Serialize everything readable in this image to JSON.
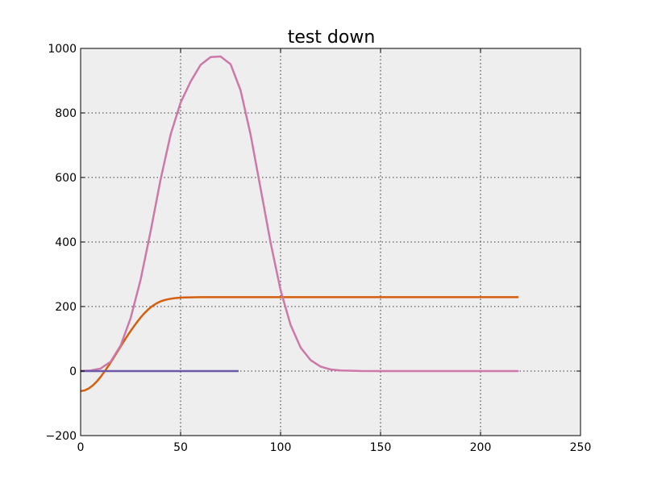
{
  "chart_data": {
    "type": "line",
    "title": "test down",
    "xlabel": "",
    "ylabel": "",
    "xlim": [
      0,
      250
    ],
    "ylim": [
      -200,
      1000
    ],
    "xticks": [
      0,
      50,
      100,
      150,
      200,
      250
    ],
    "yticks": [
      -200,
      0,
      200,
      400,
      600,
      800,
      1000
    ],
    "xtick_labels": [
      "0",
      "50",
      "100",
      "150",
      "200",
      "250"
    ],
    "ytick_labels": [
      "−200",
      "0",
      "200",
      "400",
      "600",
      "800",
      "1000"
    ],
    "grid": true,
    "series": [
      {
        "color": "#d65f0e",
        "x": [
          0,
          2,
          4,
          6,
          8,
          10,
          12,
          14,
          16,
          18,
          20,
          22,
          24,
          26,
          28,
          30,
          32,
          34,
          36,
          38,
          40,
          42,
          44,
          46,
          48,
          50,
          52,
          55,
          60,
          65,
          70,
          80,
          100,
          150,
          200,
          219
        ],
        "y": [
          -62,
          -60,
          -54,
          -45,
          -33,
          -18,
          -1,
          17,
          36,
          56,
          76,
          96,
          115,
          133,
          150,
          166,
          180,
          192,
          202,
          210,
          216,
          220,
          223,
          225,
          226.5,
          227.5,
          228,
          228.5,
          229,
          229,
          229,
          229,
          229,
          229,
          229,
          229
        ]
      },
      {
        "color": "#cc79a7",
        "x": [
          0,
          5,
          10,
          15,
          20,
          25,
          30,
          35,
          40,
          45,
          50,
          55,
          60,
          65,
          70,
          75,
          80,
          85,
          90,
          95,
          100,
          105,
          110,
          115,
          120,
          125,
          130,
          140,
          150,
          170,
          200,
          219
        ],
        "y": [
          0.2,
          1.5,
          8,
          29,
          79,
          164,
          283,
          433,
          594,
          733,
          832,
          897,
          949,
          973,
          975,
          951,
          870,
          733,
          566,
          398,
          251,
          143,
          73,
          34,
          14,
          5,
          2,
          0.3,
          0,
          0,
          0,
          0
        ]
      },
      {
        "color": "#6a5aa8",
        "x": [
          0,
          79
        ],
        "y": [
          0,
          0
        ]
      }
    ]
  }
}
